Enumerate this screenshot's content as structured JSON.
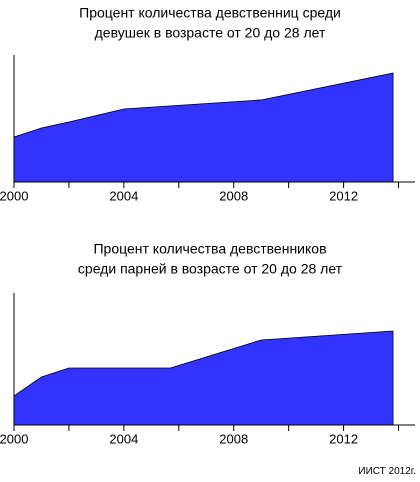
{
  "chart_data": [
    {
      "type": "area",
      "title": [
        "Процент количества девственниц среди",
        "девушек в возрасте от 20 до 28 лет"
      ],
      "x": [
        2000,
        2001,
        2002,
        2004,
        2009,
        2013.8
      ],
      "values": [
        35.4,
        42.5,
        47.2,
        57.5,
        64.6,
        85.8
      ],
      "color": "#3333ff",
      "xlim": [
        2000,
        2014.6
      ],
      "ylim": [
        0,
        100
      ],
      "xticks": [
        2000,
        2004,
        2008,
        2012
      ],
      "xminor": [
        2002,
        2006,
        2010,
        2014
      ]
    },
    {
      "type": "area",
      "title": [
        "Процент количества девственников",
        "среди парней в возрасте от 20 до 28 лет"
      ],
      "x": [
        2000,
        2001,
        2002,
        2005.7,
        2009,
        2013.8
      ],
      "values": [
        22,
        36.4,
        43.2,
        43.2,
        64.4,
        71.2
      ],
      "color": "#3333ff",
      "xlim": [
        2000,
        2014.6
      ],
      "ylim": [
        0,
        100
      ],
      "xticks": [
        2000,
        2004,
        2008,
        2012
      ],
      "xminor": [
        2002,
        2006,
        2010,
        2014
      ]
    }
  ],
  "footer": "ИИСТ 2012г."
}
